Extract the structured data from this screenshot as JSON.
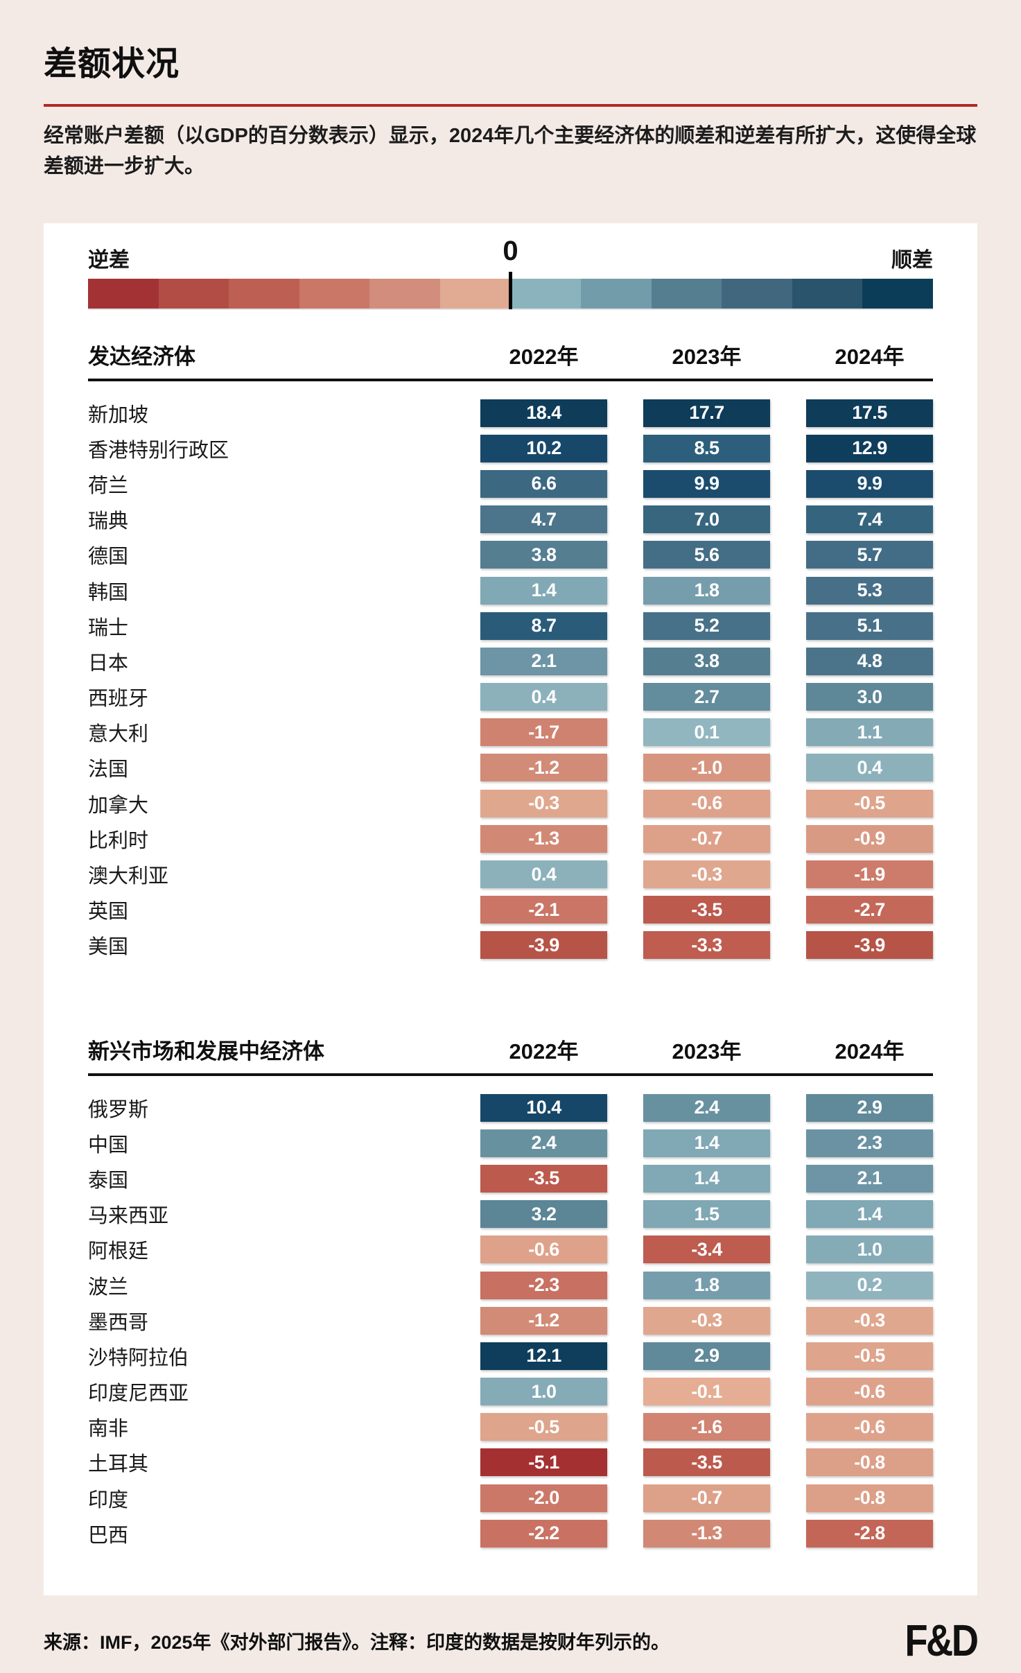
{
  "page": {
    "title": "差额状况",
    "subtitle": "经常账户差额（以GDP的百分数表示）显示，2024年几个主要经济体的顺差和逆差有所扩大，这使得全球差额进一步扩大。",
    "source_note": "来源：IMF，2025年《对外部门报告》。注释：印度的数据是按财年列示的。",
    "logo": "F&D"
  },
  "legend": {
    "deficit_label": "逆差",
    "zero_label": "0",
    "surplus_label": "顺差",
    "swatches": [
      "#a33234",
      "#b14d45",
      "#bd5f53",
      "#ca7767",
      "#d28d7c",
      "#e0aa93",
      "#8ab3bd",
      "#739cab",
      "#567e91",
      "#41677e",
      "#2a546c",
      "#0c3d58"
    ]
  },
  "chart_data": {
    "type": "heatmap",
    "title": "差额状况",
    "value_description": "经常账户差额（以GDP的百分数表示）",
    "columns": [
      "2022年",
      "2023年",
      "2024年"
    ],
    "groups": [
      {
        "label": "发达经济体",
        "rows": [
          {
            "label": "新加坡",
            "values": [
              18.4,
              17.7,
              17.5
            ]
          },
          {
            "label": "香港特别行政区",
            "values": [
              10.2,
              8.5,
              12.9
            ]
          },
          {
            "label": "荷兰",
            "values": [
              6.6,
              9.9,
              9.9
            ]
          },
          {
            "label": "瑞典",
            "values": [
              4.7,
              7.0,
              7.4
            ]
          },
          {
            "label": "德国",
            "values": [
              3.8,
              5.6,
              5.7
            ]
          },
          {
            "label": "韩国",
            "values": [
              1.4,
              1.8,
              5.3
            ]
          },
          {
            "label": "瑞士",
            "values": [
              8.7,
              5.2,
              5.1
            ]
          },
          {
            "label": "日本",
            "values": [
              2.1,
              3.8,
              4.8
            ]
          },
          {
            "label": "西班牙",
            "values": [
              0.4,
              2.7,
              3.0
            ]
          },
          {
            "label": "意大利",
            "values": [
              -1.7,
              0.1,
              1.1
            ]
          },
          {
            "label": "法国",
            "values": [
              -1.2,
              -1.0,
              0.4
            ]
          },
          {
            "label": "加拿大",
            "values": [
              -0.3,
              -0.6,
              -0.5
            ]
          },
          {
            "label": "比利时",
            "values": [
              -1.3,
              -0.7,
              -0.9
            ]
          },
          {
            "label": "澳大利亚",
            "values": [
              0.4,
              -0.3,
              -1.9
            ]
          },
          {
            "label": "英国",
            "values": [
              -2.1,
              -3.5,
              -2.7
            ]
          },
          {
            "label": "美国",
            "values": [
              -3.9,
              -3.3,
              -3.9
            ]
          }
        ]
      },
      {
        "label": "新兴市场和发展中经济体",
        "rows": [
          {
            "label": "俄罗斯",
            "values": [
              10.4,
              2.4,
              2.9
            ]
          },
          {
            "label": "中国",
            "values": [
              2.4,
              1.4,
              2.3
            ]
          },
          {
            "label": "泰国",
            "values": [
              -3.5,
              1.4,
              2.1
            ]
          },
          {
            "label": "马来西亚",
            "values": [
              3.2,
              1.5,
              1.4
            ]
          },
          {
            "label": "阿根廷",
            "values": [
              -0.6,
              -3.4,
              1.0
            ]
          },
          {
            "label": "波兰",
            "values": [
              -2.3,
              1.8,
              0.2
            ]
          },
          {
            "label": "墨西哥",
            "values": [
              -1.2,
              -0.3,
              -0.3
            ]
          },
          {
            "label": "沙特阿拉伯",
            "values": [
              12.1,
              2.9,
              -0.5
            ]
          },
          {
            "label": "印度尼西亚",
            "values": [
              1.0,
              -0.1,
              -0.6
            ]
          },
          {
            "label": "南非",
            "values": [
              -0.5,
              -1.6,
              -0.6
            ]
          },
          {
            "label": "土耳其",
            "values": [
              -5.1,
              -3.5,
              -0.8
            ]
          },
          {
            "label": "印度",
            "values": [
              -2.0,
              -0.7,
              -0.8
            ]
          },
          {
            "label": "巴西",
            "values": [
              -2.2,
              -1.3,
              -2.8
            ]
          }
        ]
      }
    ],
    "color_scale": {
      "positive_stops": [
        [
          0,
          "#93b8c2"
        ],
        [
          0.5,
          "#8aafb9"
        ],
        [
          1.5,
          "#80a7b4"
        ],
        [
          2,
          "#6f97a6"
        ],
        [
          3,
          "#5e8798"
        ],
        [
          4,
          "#537c8f"
        ],
        [
          5,
          "#497289"
        ],
        [
          6,
          "#416b84"
        ],
        [
          7,
          "#38667f"
        ],
        [
          8.5,
          "#2d5f7c"
        ],
        [
          10.2,
          "#17486a"
        ],
        [
          12,
          "#0f3e5c"
        ],
        [
          18.4,
          "#0e3c59"
        ]
      ],
      "negative_stops": [
        [
          0,
          "#e7b095"
        ],
        [
          -0.3,
          "#e0a78f"
        ],
        [
          -0.8,
          "#dc9f88"
        ],
        [
          -1.2,
          "#d18b76"
        ],
        [
          -1.7,
          "#d08270"
        ],
        [
          -2.2,
          "#c97263"
        ],
        [
          -3,
          "#c16253"
        ],
        [
          -3.5,
          "#bc5a4e"
        ],
        [
          -4,
          "#b55247"
        ],
        [
          -5.1,
          "#a53031"
        ]
      ]
    }
  }
}
